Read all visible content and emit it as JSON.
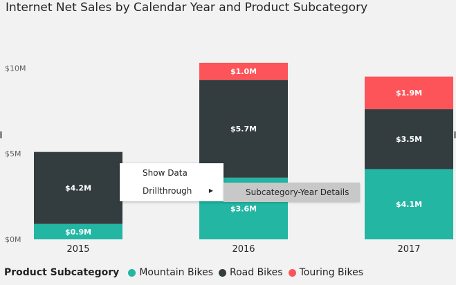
{
  "chart_data": {
    "type": "bar",
    "stacked": true,
    "title": "Internet Net Sales by Calendar Year and Product Subcategory",
    "categories": [
      "2015",
      "2016",
      "2017"
    ],
    "series": [
      {
        "name": "Mountain Bikes",
        "color": "#22b6a3",
        "values": [
          0.9,
          3.6,
          4.1
        ],
        "labels": [
          "$0.9M",
          "$3.6M",
          "$4.1M"
        ]
      },
      {
        "name": "Road Bikes",
        "color": "#333d40",
        "values": [
          4.2,
          5.7,
          3.5
        ],
        "labels": [
          "$4.2M",
          "$5.7M",
          "$3.5M"
        ]
      },
      {
        "name": "Touring Bikes",
        "color": "#fc5459",
        "values": [
          0,
          1.0,
          1.9
        ],
        "labels": [
          "",
          "$1.0M",
          "$1.9M"
        ]
      }
    ],
    "y_ticks": [
      0,
      5,
      10
    ],
    "y_tick_labels": [
      "$0M",
      "$5M",
      "$10M"
    ],
    "ylim": [
      0,
      10.9
    ],
    "legend_title": "Product Subcategory",
    "legend_position": "bottom-left",
    "grid": false
  },
  "context_menu": {
    "items": [
      "Show Data",
      "Drillthrough"
    ],
    "submenu_items": [
      "Subcategory-Year Details"
    ],
    "submenu_arrow": "▶"
  }
}
